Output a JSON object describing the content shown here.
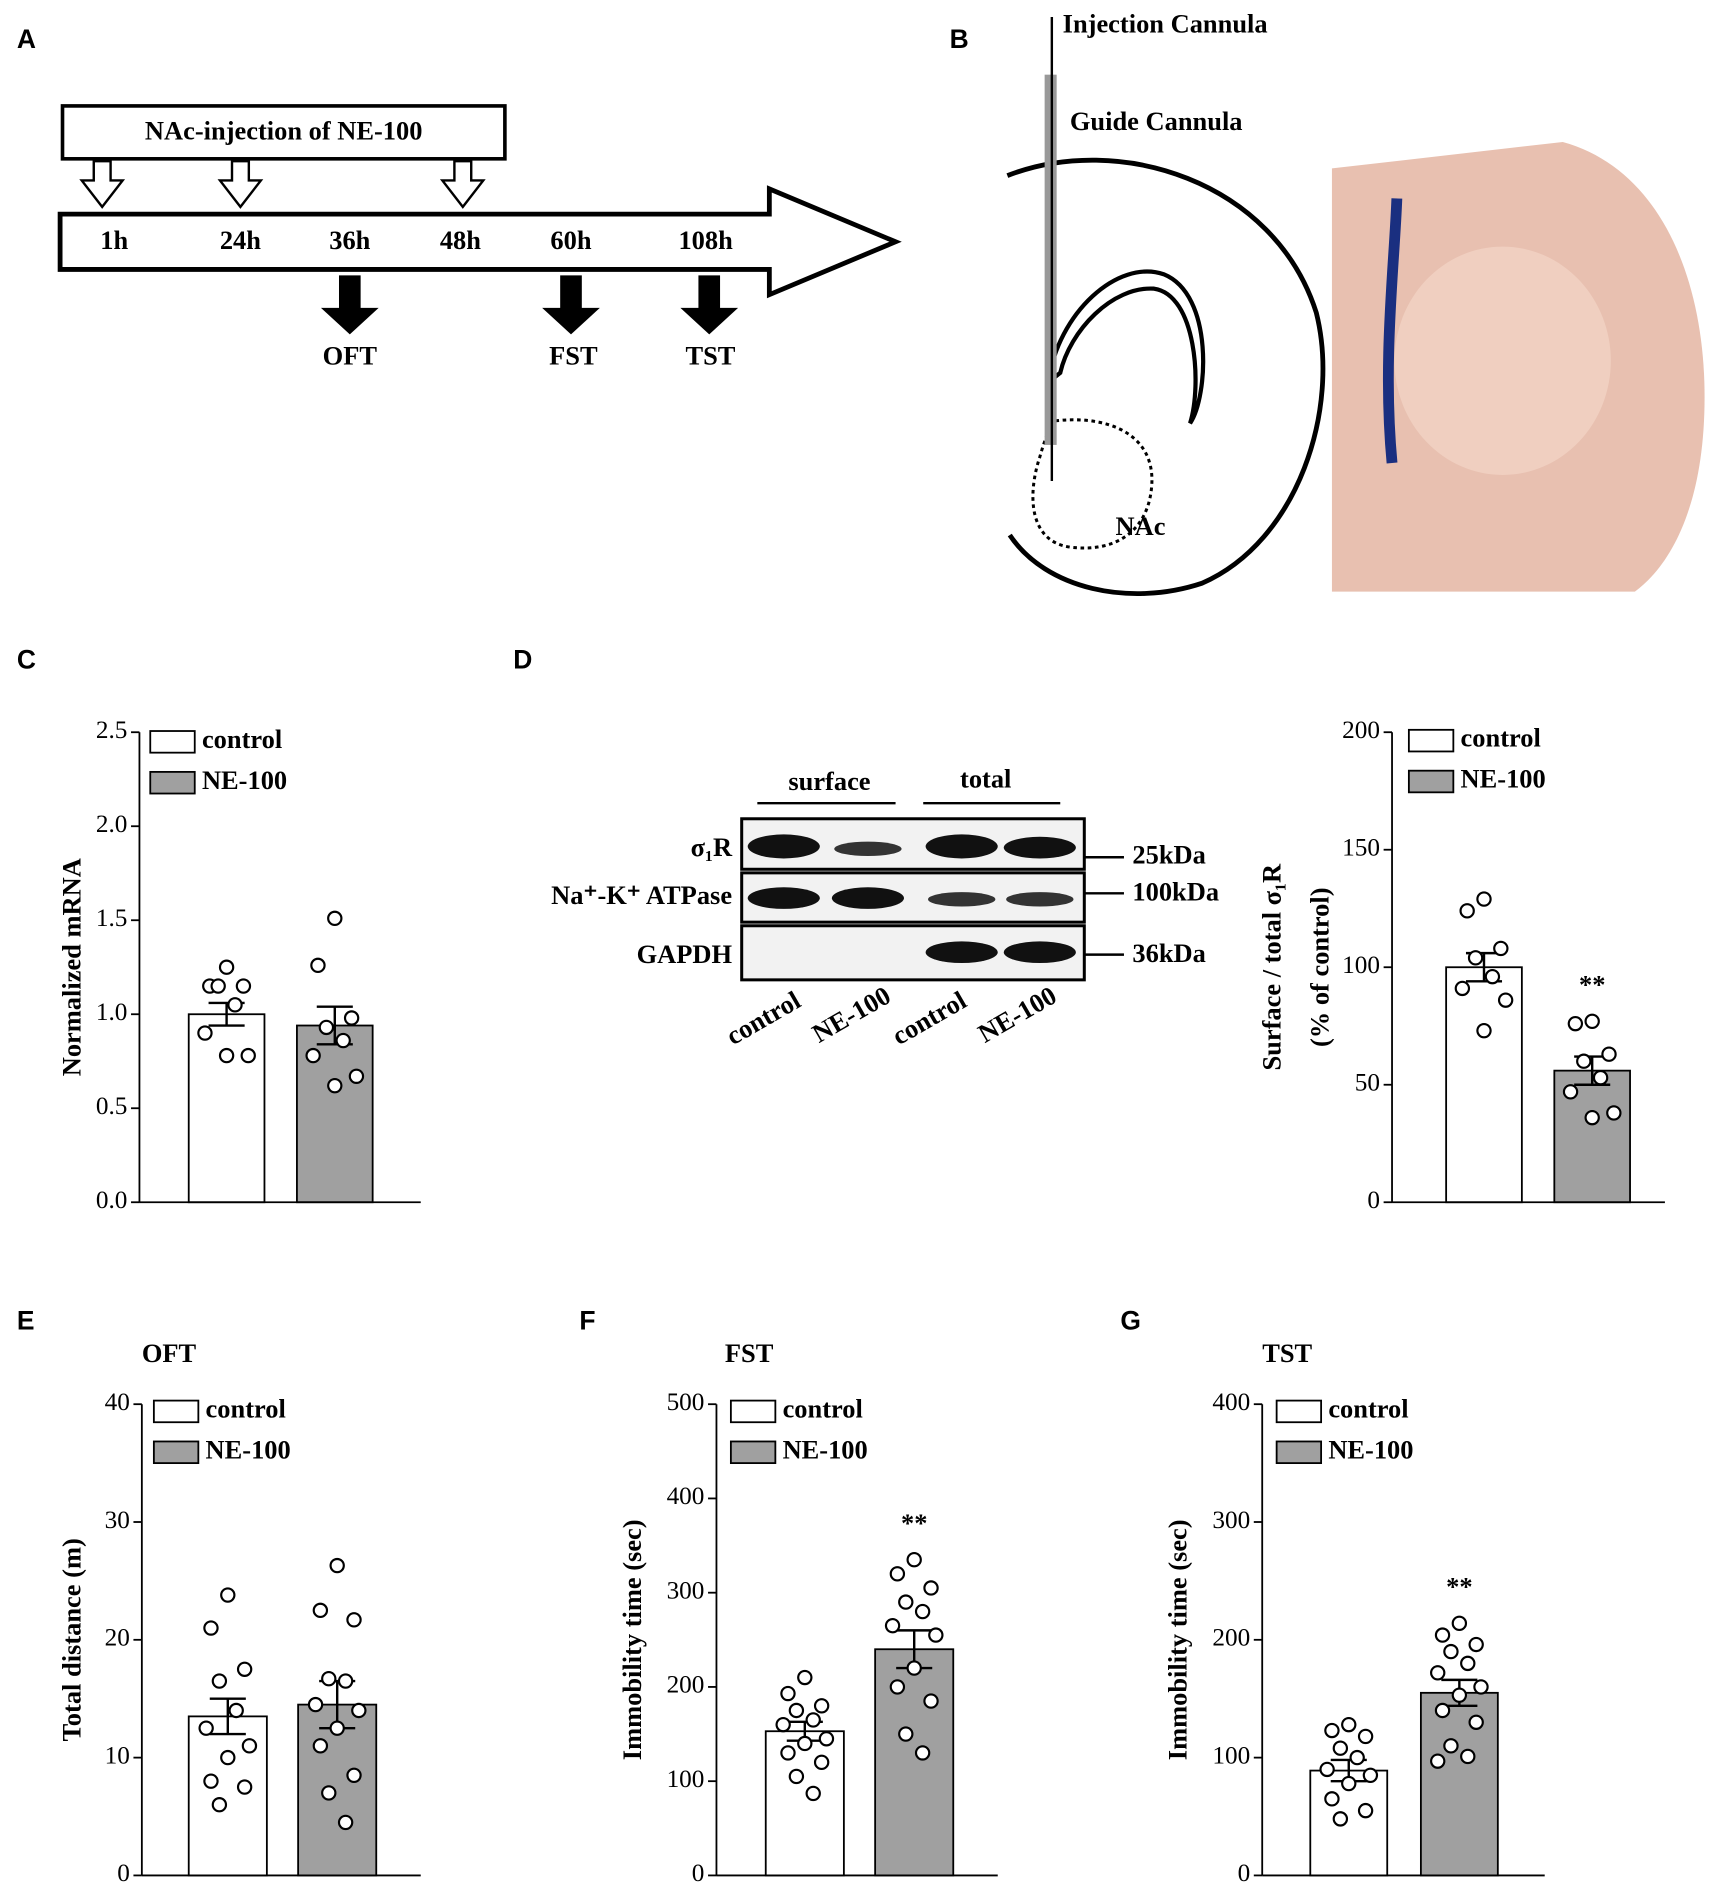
{
  "panel_a": {
    "letter": "A",
    "injection": "NAc-injection of NE-100",
    "times": [
      "1h",
      "24h",
      "36h",
      "48h",
      "60h",
      "108h"
    ],
    "tests": [
      "OFT",
      "FST",
      "TST"
    ]
  },
  "panel_b": {
    "letter": "B",
    "injection_cannula": "Injection Cannula",
    "guide_cannula": "Guide Cannula",
    "region": "NAc"
  },
  "panel_d_blot": {
    "letter": "D",
    "groups": [
      "surface",
      "total"
    ],
    "rows": [
      "σ₁R",
      "Na⁺-K⁺ ATPase",
      "GAPDH"
    ],
    "sizes": [
      "25kDa",
      "100kDa",
      "36kDa"
    ],
    "lanes": [
      "control",
      "NE-100",
      "control",
      "NE-100"
    ]
  },
  "chart_data": [
    {
      "type": "bar",
      "panel": "C",
      "ylabel": "Normalized mRNA",
      "ylim": [
        0,
        2.5
      ],
      "yticks": [
        {
          "value": 0,
          "label": "0.0"
        },
        0.5,
        {
          "value": 1,
          "label": "1.0"
        },
        1.5,
        {
          "value": 2,
          "label": "2.0"
        },
        2.5
      ],
      "series": [
        {
          "name": "control",
          "color": "#ffffff",
          "values": [
            1.0
          ],
          "errors": [
            0.06
          ],
          "points": [
            1.25,
            1.15,
            1.15,
            1.15,
            1.05,
            0.9,
            0.78,
            0.78
          ]
        },
        {
          "name": "NE-100",
          "color": "#a0a0a0",
          "values": [
            0.94
          ],
          "errors": [
            0.1
          ],
          "points": [
            1.51,
            1.26,
            0.98,
            0.93,
            0.86,
            0.78,
            0.67,
            0.62
          ]
        }
      ]
    },
    {
      "type": "bar",
      "ylabel": [
        "Surface / total σ₁R",
        "(% of control)"
      ],
      "ylim": [
        0,
        200
      ],
      "yticks": [
        0,
        50,
        100,
        150,
        200
      ],
      "series": [
        {
          "name": "control",
          "color": "#ffffff",
          "values": [
            100
          ],
          "errors": [
            6
          ],
          "points": [
            129,
            124,
            108,
            104,
            96,
            91,
            86,
            73
          ]
        },
        {
          "name": "NE-100",
          "color": "#a0a0a0",
          "values": [
            56
          ],
          "errors": [
            6
          ],
          "annotation": "**",
          "points": [
            77,
            76,
            63,
            60,
            53,
            47,
            38,
            36
          ]
        }
      ]
    },
    {
      "type": "bar",
      "panel": "E",
      "title": "OFT",
      "ylabel": "Total distance (m)",
      "ylim": [
        0,
        40
      ],
      "yticks": [
        0,
        10,
        20,
        30,
        40
      ],
      "series": [
        {
          "name": "control",
          "color": "#ffffff",
          "values": [
            13.5
          ],
          "errors": [
            1.5
          ],
          "points": [
            23.8,
            21,
            17.5,
            16.5,
            14,
            12.5,
            11,
            10,
            8,
            7.5,
            6
          ]
        },
        {
          "name": "NE-100",
          "color": "#a0a0a0",
          "values": [
            14.5
          ],
          "errors": [
            2
          ],
          "points": [
            26.3,
            22.5,
            21.7,
            16.7,
            16.5,
            14.5,
            14,
            12.5,
            11,
            8.5,
            7,
            4.5
          ]
        }
      ]
    },
    {
      "type": "bar",
      "panel": "F",
      "title": "FST",
      "ylabel": "Immobility time (sec)",
      "ylim": [
        0,
        500
      ],
      "yticks": [
        0,
        100,
        200,
        300,
        400,
        500
      ],
      "series": [
        {
          "name": "control",
          "color": "#ffffff",
          "values": [
            153
          ],
          "errors": [
            10
          ],
          "points": [
            210,
            193,
            180,
            175,
            165,
            160,
            145,
            140,
            130,
            120,
            105,
            87
          ]
        },
        {
          "name": "NE-100",
          "color": "#a0a0a0",
          "values": [
            240
          ],
          "errors": [
            20
          ],
          "annotation": "**",
          "points": [
            335,
            320,
            305,
            290,
            280,
            265,
            255,
            220,
            200,
            185,
            150,
            130
          ]
        }
      ]
    },
    {
      "type": "bar",
      "panel": "G",
      "title": "TST",
      "ylabel": "Immobility time (sec)",
      "ylim": [
        0,
        400
      ],
      "yticks": [
        0,
        100,
        200,
        300,
        400
      ],
      "series": [
        {
          "name": "control",
          "color": "#ffffff",
          "values": [
            89
          ],
          "errors": [
            9
          ],
          "points": [
            128,
            123,
            118,
            108,
            100,
            90,
            85,
            78,
            65,
            55,
            48
          ]
        },
        {
          "name": "NE-100",
          "color": "#a0a0a0",
          "values": [
            155
          ],
          "errors": [
            11
          ],
          "annotation": "**",
          "points": [
            214,
            204,
            196,
            190,
            180,
            172,
            160,
            153,
            140,
            130,
            110,
            101,
            97
          ]
        }
      ]
    }
  ]
}
